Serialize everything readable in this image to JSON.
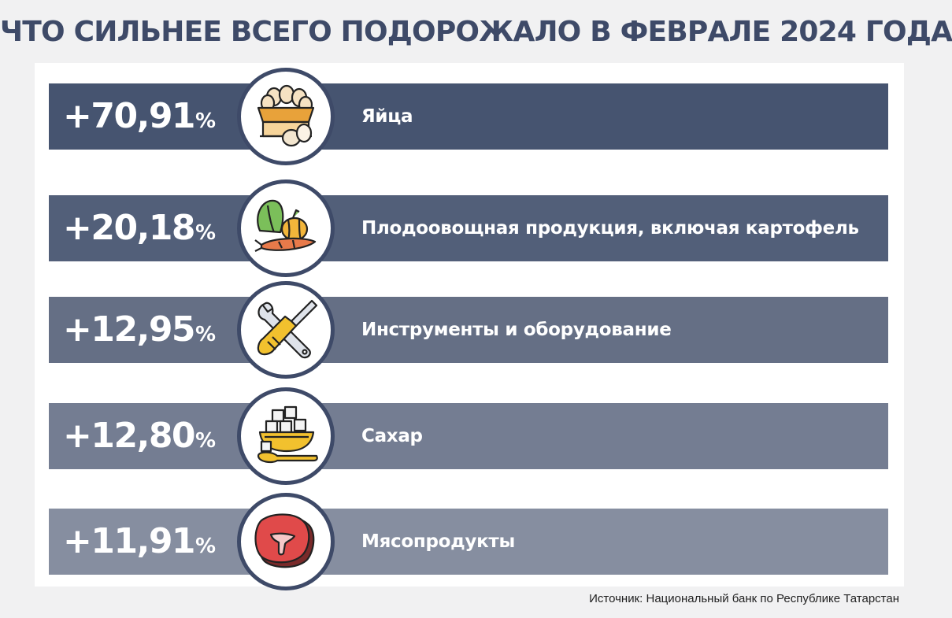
{
  "title": "ЧТО СИЛЬНЕЕ ВСЕГО ПОДОРОЖАЛО В ФЕВРАЛЕ 2024 ГОДА",
  "source": "Источник: Национальный банк по Республике Татарстан",
  "chart_data": {
    "type": "bar",
    "title": "ЧТО СИЛЬНЕЕ ВСЕГО ПОДОРОЖАЛО В ФЕВРАЛЕ 2024 ГОДА",
    "unit": "%",
    "categories": [
      "Яйца",
      "Плодоовощная продукция, включая картофель",
      "Инструменты и оборудование",
      "Сахар",
      "Мясопродукты"
    ],
    "values": [
      70.91,
      20.18,
      12.95,
      12.8,
      11.91
    ],
    "rows": [
      {
        "value": "+70,91",
        "unit": "%",
        "label": "Яйца",
        "icon": "eggs-basket-icon",
        "color": "#465470"
      },
      {
        "value": "+20,18",
        "unit": "%",
        "label": "Плодоовощная продукция, включая картофель",
        "icon": "vegetables-icon",
        "color": "#525f79"
      },
      {
        "value": "+12,95",
        "unit": "%",
        "label": "Инструменты и оборудование",
        "icon": "tools-icon",
        "color": "#656f85"
      },
      {
        "value": "+12,80",
        "unit": "%",
        "label": "Сахар",
        "icon": "sugar-icon",
        "color": "#747d92"
      },
      {
        "value": "+11,91",
        "unit": "%",
        "label": "Мясопродукты",
        "icon": "meat-icon",
        "color": "#868ea0"
      }
    ],
    "colors": {
      "title": "#3e4a68",
      "badge_border": "#3e4a68",
      "panel": "#ffffff",
      "background": "#f1f1f2"
    }
  }
}
